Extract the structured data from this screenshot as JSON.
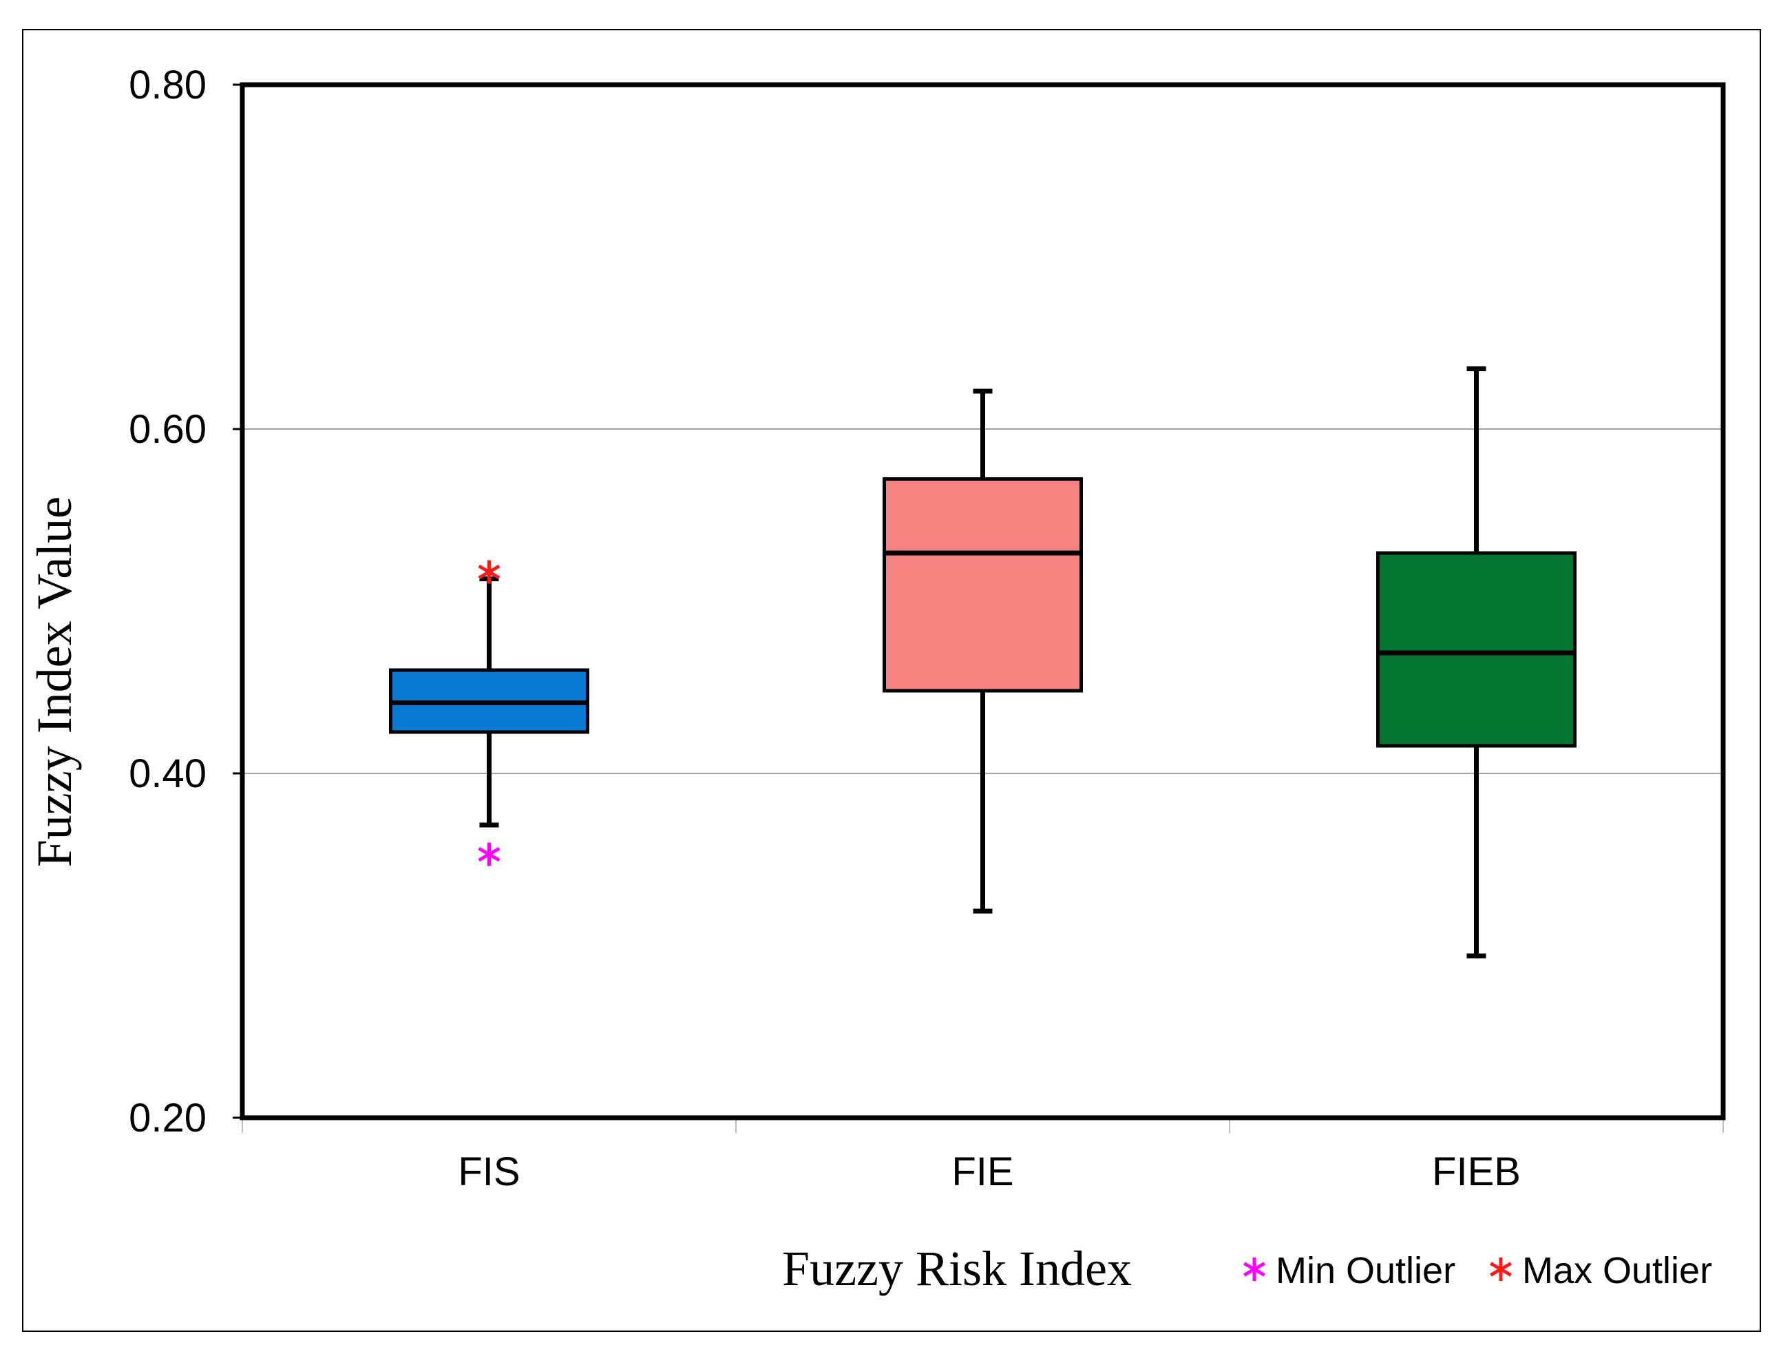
{
  "chart_data": {
    "type": "boxplot",
    "title": "",
    "xlabel": "Fuzzy Risk Index",
    "ylabel": "Fuzzy Index Value",
    "ylim": [
      0.2,
      0.8
    ],
    "yticks": [
      "0.20",
      "0.40",
      "0.60",
      "0.80"
    ],
    "ytick_values": [
      0.2,
      0.4,
      0.6,
      0.8
    ],
    "gridlines": [
      0.4,
      0.6
    ],
    "categories": [
      "FIS",
      "FIE",
      "FIEB"
    ],
    "boxes": [
      {
        "name": "FIS",
        "whisker_low": 0.37,
        "q1": 0.424,
        "median": 0.441,
        "q3": 0.46,
        "whisker_high": 0.513,
        "min_outlier": 0.353,
        "max_outlier": 0.517,
        "color": "#0a7ad2"
      },
      {
        "name": "FIE",
        "whisker_low": 0.32,
        "q1": 0.448,
        "median": 0.528,
        "q3": 0.571,
        "whisker_high": 0.622,
        "color": "#f78282"
      },
      {
        "name": "FIEB",
        "whisker_low": 0.294,
        "q1": 0.416,
        "median": 0.47,
        "q3": 0.528,
        "whisker_high": 0.635,
        "color": "#047531"
      }
    ],
    "legend": [
      {
        "label": "Min Outlier",
        "marker": "asterisk",
        "color": "#ff00ff"
      },
      {
        "label": "Max Outlier",
        "marker": "asterisk",
        "color": "#ff1a1a"
      }
    ]
  }
}
